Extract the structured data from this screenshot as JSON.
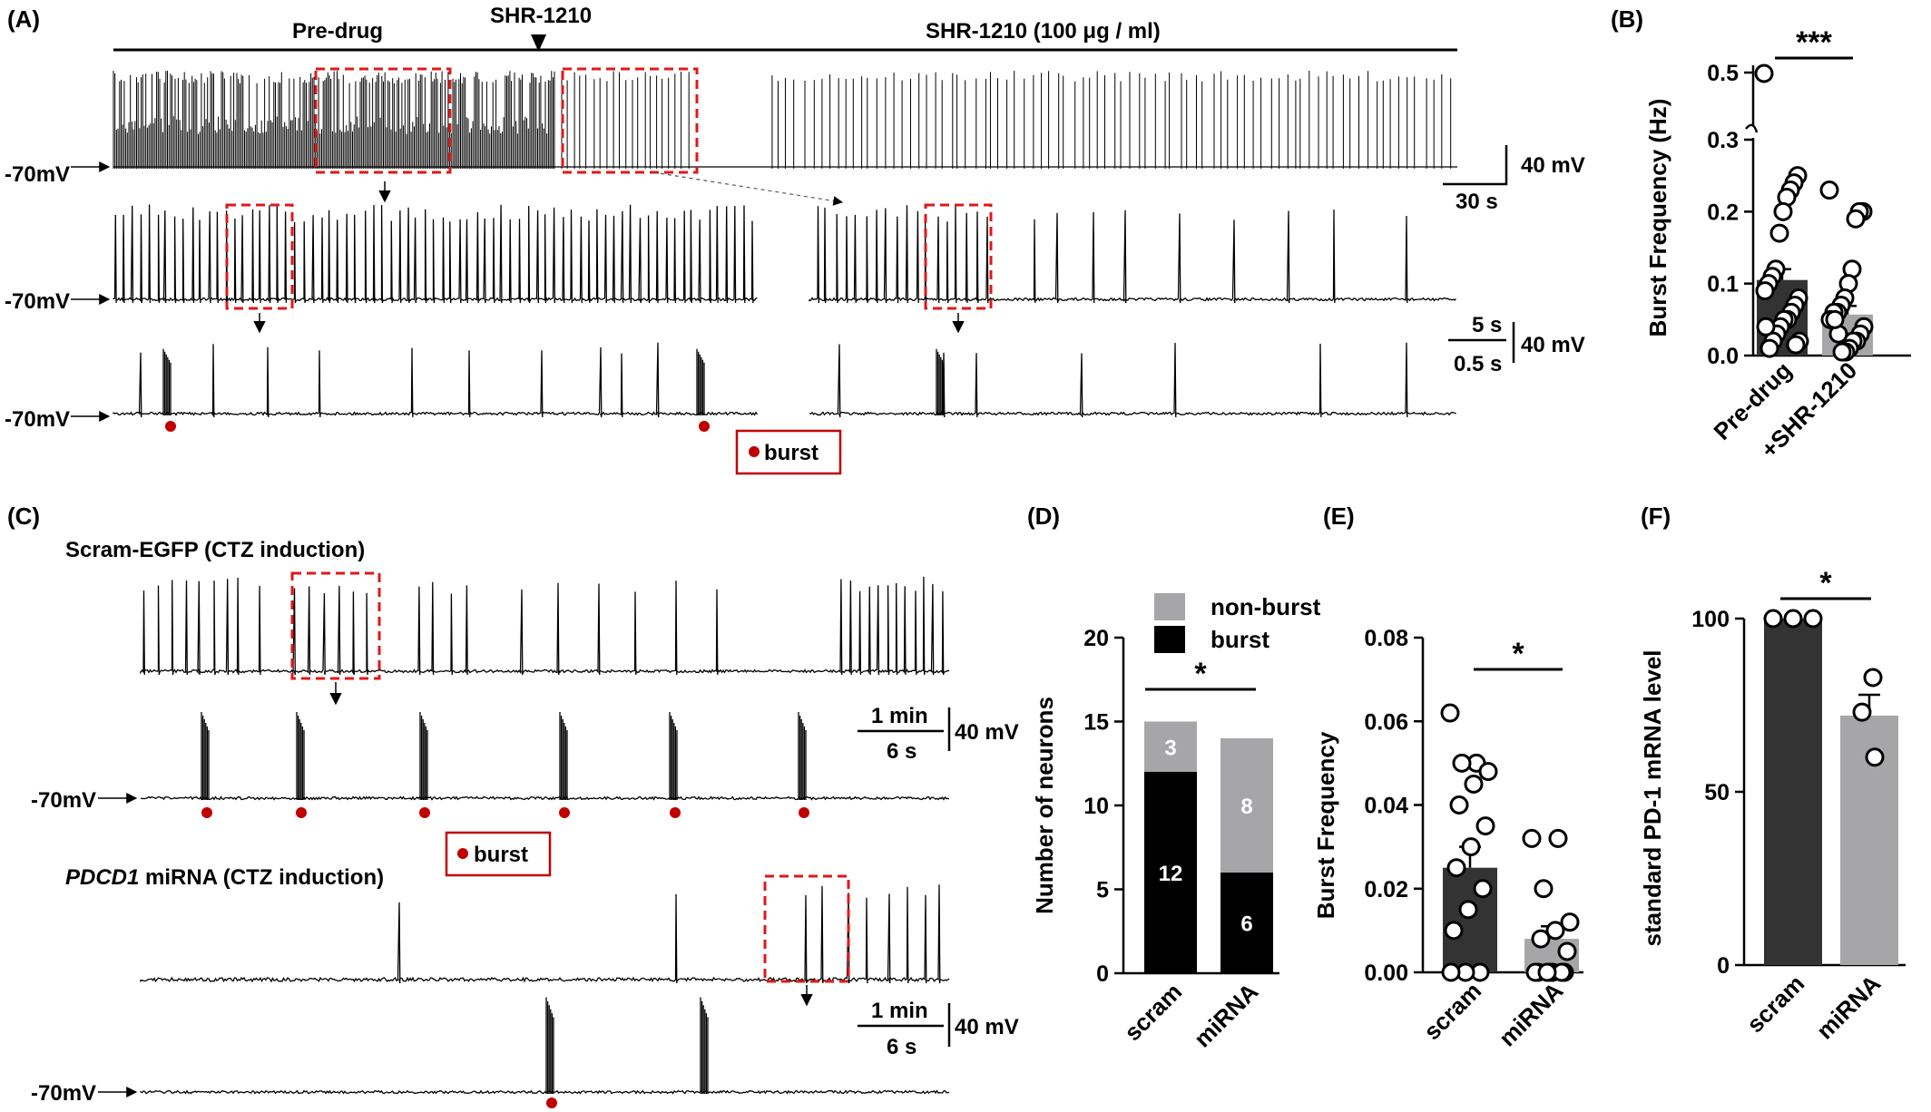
{
  "panels": {
    "A": {
      "label": "(A)",
      "pre_drug": "Pre-drug",
      "drug": "SHR-1210",
      "drug_dose": "SHR-1210 (100 μg / ml)",
      "baseline": "-70mV",
      "scale_v": "40 mV",
      "scale_t1": "30 s",
      "scale_t2": "5 s",
      "scale_t3": "0.5 s",
      "burst_legend": "burst"
    },
    "C": {
      "label": "(C)",
      "title1": "Scram-EGFP (CTZ induction)",
      "title2_italic": "PDCD1",
      "title2_rest": " miRNA (CTZ induction)",
      "baseline": "-70mV",
      "scale_t1": "1 min",
      "scale_t2": "6 s",
      "scale_v": "40 mV",
      "burst_legend": "burst"
    }
  },
  "colors": {
    "burst": "#c00000",
    "dark_bar": "#333333",
    "grey_bar": "#a6a6a8",
    "box": "#e01818"
  },
  "chart_data": [
    {
      "panel": "(B)",
      "type": "bar",
      "ylabel": "Burst Frequency (Hz)",
      "categories": [
        "Pre-drug",
        "+SHR-1210"
      ],
      "values": [
        0.105,
        0.057
      ],
      "sem": [
        0.015,
        0.012
      ],
      "ylim": [
        0,
        0.5
      ],
      "axis_break": [
        0.3,
        0.5
      ],
      "yticks": [
        "0.0",
        "0.1",
        "0.2",
        "0.3",
        "0.5"
      ],
      "significance": "***",
      "points": [
        [
          0.49,
          0.25,
          0.24,
          0.23,
          0.22,
          0.2,
          0.17,
          0.12,
          0.11,
          0.1,
          0.09,
          0.08,
          0.07,
          0.06,
          0.05,
          0.05,
          0.04,
          0.03,
          0.02,
          0.01,
          0.04,
          0.02,
          0.015
        ],
        [
          0.23,
          0.2,
          0.2,
          0.19,
          0.12,
          0.1,
          0.08,
          0.07,
          0.06,
          0.06,
          0.05,
          0.04,
          0.03,
          0.02,
          0.02,
          0.01,
          0.005,
          0.005,
          0.03,
          0.05
        ]
      ]
    },
    {
      "panel": "(D)",
      "type": "bar",
      "ylabel": "Number of neurons",
      "categories": [
        "scram",
        "miRNA"
      ],
      "series": [
        {
          "name": "burst",
          "values": [
            12,
            6
          ]
        },
        {
          "name": "non-burst",
          "values": [
            3,
            8
          ]
        }
      ],
      "ylim": [
        0,
        20
      ],
      "yticks": [
        "0",
        "5",
        "10",
        "15",
        "20"
      ],
      "significance": "*"
    },
    {
      "panel": "(E)",
      "type": "bar",
      "ylabel": "Burst Frequency",
      "categories": [
        "scram",
        "miRNA"
      ],
      "values": [
        0.025,
        0.008
      ],
      "sem": [
        0.005,
        0.003
      ],
      "ylim": [
        0,
        0.08
      ],
      "yticks": [
        "0.00",
        "0.02",
        "0.04",
        "0.06",
        "0.08"
      ],
      "significance": "*",
      "points": [
        [
          0.062,
          0.05,
          0.05,
          0.048,
          0.045,
          0.04,
          0.035,
          0.03,
          0.025,
          0.02,
          0.015,
          0.01,
          0.0,
          0.0,
          0.0
        ],
        [
          0.032,
          0.032,
          0.02,
          0.012,
          0.01,
          0.008,
          0.005,
          0.0,
          0.0,
          0.0,
          0.0,
          0.0,
          0.0,
          0.0
        ]
      ]
    },
    {
      "panel": "(F)",
      "type": "bar",
      "ylabel": "standard PD-1 mRNA level",
      "categories": [
        "scram",
        "miRNA"
      ],
      "values": [
        100,
        72
      ],
      "sem": [
        0,
        6
      ],
      "ylim": [
        0,
        100
      ],
      "yticks": [
        "0",
        "50",
        "100"
      ],
      "significance": "*",
      "points": [
        [
          100,
          100,
          100
        ],
        [
          83,
          73,
          60
        ]
      ]
    }
  ]
}
